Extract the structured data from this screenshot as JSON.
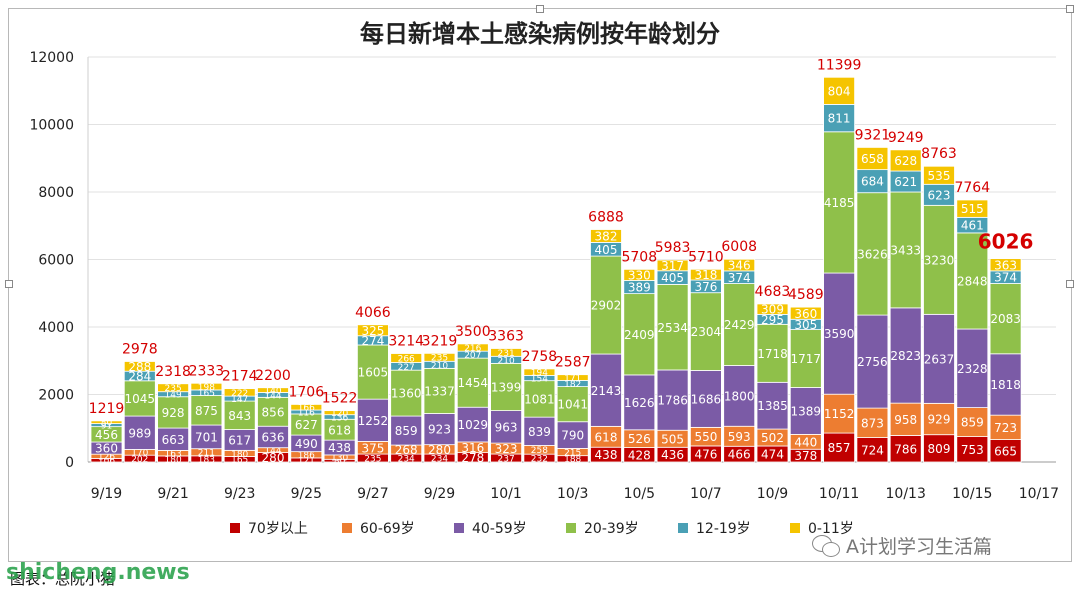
{
  "chart_data": {
    "type": "bar",
    "stacked": true,
    "title": "每日新增本土感染病例按年龄划分",
    "ylim": [
      0,
      12000
    ],
    "y_ticks": [
      0,
      2000,
      4000,
      6000,
      8000,
      10000,
      12000
    ],
    "x_tick_labels": [
      "9/19",
      "9/21",
      "9/23",
      "9/25",
      "9/27",
      "9/29",
      "10/1",
      "10/3",
      "10/5",
      "10/7",
      "10/9",
      "10/11",
      "10/13",
      "10/15",
      "10/17"
    ],
    "legend_position": "bottom",
    "categories": [
      "9/19",
      "9/20",
      "9/21",
      "9/22",
      "9/23",
      "9/24",
      "9/25",
      "9/26",
      "9/27",
      "9/28",
      "9/29",
      "9/30",
      "10/1",
      "10/2",
      "10/3",
      "10/4",
      "10/5",
      "10/6",
      "10/7",
      "10/8",
      "10/9",
      "10/10",
      "10/11",
      "10/12",
      "10/13",
      "10/14",
      "10/15",
      "10/16"
    ],
    "totals": [
      1219,
      2978,
      2318,
      2333,
      2174,
      2200,
      1706,
      1522,
      4066,
      3214,
      3219,
      3500,
      3363,
      2758,
      2587,
      6888,
      5708,
      5983,
      5710,
      6008,
      4683,
      4589,
      11399,
      9321,
      9249,
      8763,
      7764,
      6026
    ],
    "series": [
      {
        "name": "70岁以上",
        "color": "#c00000",
        "values": [
          106,
          202,
          180,
          183,
          165,
          280,
          121,
          80,
          235,
          234,
          234,
          278,
          237,
          232,
          188,
          438,
          428,
          436,
          476,
          466,
          474,
          378,
          857,
          724,
          786,
          809,
          753,
          665
        ]
      },
      {
        "name": "60-69岁",
        "color": "#ed7d31",
        "values": [
          126,
          170,
          163,
          211,
          180,
          144,
          186,
          130,
          375,
          268,
          280,
          316,
          323,
          258,
          215,
          618,
          526,
          505,
          550,
          593,
          502,
          440,
          1152,
          873,
          958,
          929,
          859,
          723
        ]
      },
      {
        "name": "40-59岁",
        "color": "#7b5ba6",
        "values": [
          360,
          989,
          663,
          701,
          617,
          636,
          490,
          438,
          1252,
          859,
          923,
          1029,
          963,
          839,
          790,
          2143,
          1626,
          1786,
          1686,
          1800,
          1385,
          1389,
          3590,
          2756,
          2823,
          2637,
          2328,
          1818
        ]
      },
      {
        "name": "20-39岁",
        "color": "#8fc04a",
        "values": [
          456,
          1045,
          928,
          875,
          843,
          856,
          627,
          618,
          1605,
          1360,
          1337,
          1454,
          1399,
          1081,
          1041,
          2902,
          2409,
          2534,
          2304,
          2429,
          1718,
          1717,
          4185,
          3626,
          3433,
          3230,
          2848,
          2083
        ]
      },
      {
        "name": "12-19岁",
        "color": "#4aa0b5",
        "values": [
          91,
          284,
          149,
          165,
          147,
          144,
          116,
          136,
          274,
          227,
          210,
          207,
          210,
          154,
          182,
          405,
          389,
          405,
          376,
          374,
          295,
          305,
          811,
          684,
          621,
          623,
          461,
          374
        ]
      },
      {
        "name": "0-11岁",
        "color": "#f5c400",
        "values": [
          80,
          288,
          235,
          198,
          222,
          140,
          166,
          120,
          325,
          266,
          235,
          216,
          231,
          194,
          171,
          382,
          330,
          317,
          318,
          346,
          309,
          360,
          804,
          658,
          628,
          535,
          515,
          363
        ]
      }
    ]
  },
  "source_label": "图表：总阮小猪",
  "watermark_site": "shicheng.news",
  "watermark_account": "A计划学习生活篇"
}
